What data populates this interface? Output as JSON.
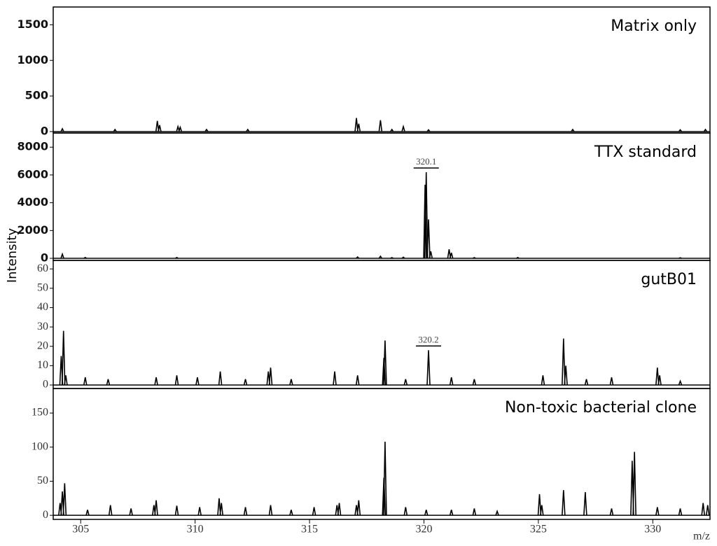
{
  "chart_data": [
    {
      "type": "stem",
      "title": "Matrix only",
      "xlim": [
        303.8,
        332.5
      ],
      "ylim": [
        -20,
        1750
      ],
      "yticks": [
        0,
        500,
        1000,
        1500
      ],
      "bold_ticks": true,
      "x": [
        304.2,
        306.5,
        308.35,
        308.45,
        309.25,
        309.35,
        310.5,
        312.3,
        317.05,
        317.15,
        318.1,
        318.6,
        319.1,
        320.2,
        326.5,
        331.2,
        332.3
      ],
      "values": [
        40,
        30,
        150,
        90,
        70,
        60,
        30,
        30,
        190,
        110,
        160,
        30,
        70,
        25,
        30,
        25,
        30
      ]
    },
    {
      "type": "stem",
      "title": "TTX standard",
      "ylabel": "Intensity",
      "xlim": [
        303.8,
        332.5
      ],
      "ylim": [
        -150,
        9020
      ],
      "yticks": [
        0,
        2000,
        4000,
        6000,
        8000
      ],
      "bold_ticks": true,
      "x": [
        304.2,
        305.2,
        309.2,
        317.1,
        318.1,
        318.6,
        319.1,
        320.05,
        320.1,
        320.2,
        320.3,
        321.1,
        321.2,
        322.2,
        324.1,
        331.2
      ],
      "values": [
        300,
        60,
        60,
        100,
        150,
        50,
        80,
        5300,
        6200,
        2800,
        500,
        650,
        400,
        50,
        60,
        40
      ],
      "annotation": "320.1"
    },
    {
      "type": "stem",
      "title": "gutB01",
      "xlim": [
        303.8,
        332.5
      ],
      "ylim": [
        -1.8,
        64.4
      ],
      "yticks": [
        0,
        10,
        20,
        30,
        40,
        50,
        60
      ],
      "bold_ticks": false,
      "x": [
        304.15,
        304.25,
        304.35,
        305.2,
        306.2,
        308.3,
        309.2,
        310.1,
        311.1,
        312.2,
        313.2,
        313.3,
        314.2,
        316.1,
        317.1,
        318.25,
        318.3,
        319.2,
        320.2,
        321.2,
        322.2,
        325.2,
        326.1,
        326.2,
        327.1,
        328.2,
        330.2,
        330.3,
        331.2
      ],
      "values": [
        15,
        28,
        5,
        4,
        3,
        4,
        5,
        4,
        7,
        3,
        7,
        9,
        3,
        7,
        5,
        14,
        23,
        3,
        18,
        4,
        3,
        5,
        24,
        10,
        3,
        4,
        9,
        5,
        2
      ],
      "annotation": "320.2"
    },
    {
      "type": "stem",
      "title": "Non-toxic bacterial clone",
      "xlim": [
        303.8,
        332.5
      ],
      "ylim": [
        -6,
        186
      ],
      "yticks": [
        0,
        50,
        100,
        150
      ],
      "bold_ticks": false,
      "xticks": [
        305,
        310,
        315,
        320,
        325,
        330
      ],
      "xlabel": "m/z",
      "x": [
        304.1,
        304.2,
        304.3,
        305.3,
        306.3,
        307.2,
        308.2,
        308.3,
        309.2,
        310.2,
        311.05,
        311.15,
        312.2,
        313.3,
        314.2,
        315.2,
        316.2,
        316.3,
        317.05,
        317.15,
        318.25,
        318.3,
        319.2,
        320.1,
        321.2,
        322.2,
        323.2,
        325.05,
        325.15,
        326.1,
        327.05,
        328.2,
        329.1,
        329.2,
        330.2,
        331.2,
        332.2,
        332.4
      ],
      "values": [
        18,
        35,
        47,
        8,
        15,
        10,
        15,
        22,
        14,
        12,
        25,
        18,
        12,
        15,
        8,
        12,
        15,
        18,
        15,
        22,
        55,
        108,
        12,
        8,
        8,
        10,
        6,
        31,
        15,
        37,
        34,
        10,
        80,
        93,
        12,
        10,
        18,
        15
      ]
    }
  ]
}
